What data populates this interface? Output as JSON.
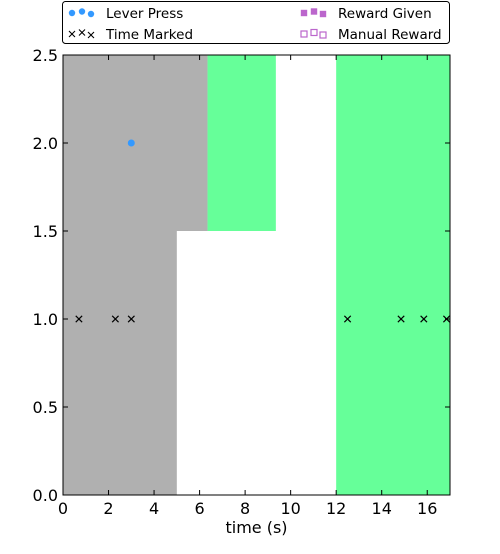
{
  "chart_data": {
    "type": "scatter",
    "xlabel": "time (s)",
    "ylabel": "",
    "xlim": [
      0,
      17
    ],
    "ylim": [
      0,
      2.5
    ],
    "xticks": [
      0,
      2,
      4,
      6,
      8,
      10,
      12,
      14,
      16
    ],
    "yticks": [
      0.0,
      0.5,
      1.0,
      1.5,
      2.0,
      2.5
    ],
    "xtick_labels": [
      "0",
      "2",
      "4",
      "6",
      "8",
      "10",
      "12",
      "14",
      "16"
    ],
    "ytick_labels": [
      "0.0",
      "0.5",
      "1.0",
      "1.5",
      "2.0",
      "2.5"
    ],
    "legend_placement": "above plot, top",
    "legend": [
      {
        "label": "Lever Press",
        "marker": "circle",
        "color": "#3399ff"
      },
      {
        "label": "Reward Given",
        "marker": "filled-square",
        "color": "#bb66cc"
      },
      {
        "label": "Time Marked",
        "marker": "x",
        "color": "#000000"
      },
      {
        "label": "Manual Reward",
        "marker": "open-square",
        "color": "#bb66cc"
      }
    ],
    "regions": [
      {
        "x0": 0,
        "x1": 6.35,
        "y0": 1.5,
        "y1": 2.5,
        "color": "#b0b0b0"
      },
      {
        "x0": 0,
        "x1": 5.0,
        "y0": 0,
        "y1": 1.5,
        "color": "#b0b0b0"
      },
      {
        "x0": 6.35,
        "x1": 9.35,
        "y0": 1.5,
        "y1": 2.5,
        "color": "#66ff99"
      },
      {
        "x0": 12.0,
        "x1": 17.0,
        "y0": 0,
        "y1": 2.5,
        "color": "#66ff99"
      }
    ],
    "series": [
      {
        "name": "Lever Press",
        "marker": "circle",
        "color": "#3399ff",
        "points": [
          {
            "x": 3.0,
            "y": 2.0
          }
        ]
      },
      {
        "name": "Time Marked",
        "marker": "x",
        "color": "#000000",
        "points": [
          {
            "x": 0.7,
            "y": 1.0
          },
          {
            "x": 2.3,
            "y": 1.0
          },
          {
            "x": 3.0,
            "y": 1.0
          },
          {
            "x": 12.5,
            "y": 1.0
          },
          {
            "x": 14.85,
            "y": 1.0
          },
          {
            "x": 15.85,
            "y": 1.0
          },
          {
            "x": 16.85,
            "y": 1.0
          }
        ]
      }
    ]
  }
}
